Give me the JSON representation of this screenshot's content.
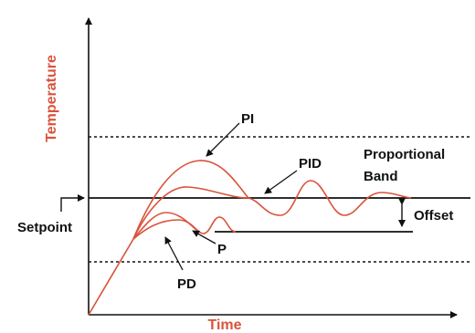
{
  "colors": {
    "curve": "#d9533b",
    "axis_label": "#d9533b",
    "line": "#111111"
  },
  "labels": {
    "y_axis": "Temperature",
    "x_axis": "Time",
    "pi": "PI",
    "pid": "PID",
    "proportional_band_line1": "Proportional",
    "proportional_band_line2": "Band",
    "offset": "Offset",
    "setpoint": "Setpoint",
    "p": "P",
    "pd": "PD"
  },
  "curves": [
    "PI",
    "PID",
    "PD",
    "P"
  ]
}
